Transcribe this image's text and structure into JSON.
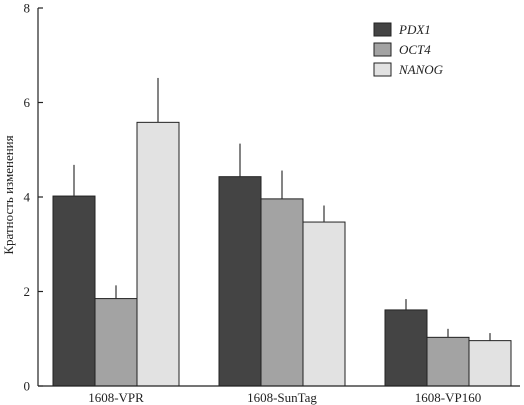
{
  "chart_data": {
    "type": "bar",
    "categories": [
      "1608-VPR",
      "1608-SunTag",
      "1608-VP160"
    ],
    "series": [
      {
        "name": "PDX1",
        "color": "#444444",
        "values": [
          4.02,
          4.43,
          1.61
        ],
        "errors": [
          0.66,
          0.7,
          0.23
        ]
      },
      {
        "name": "OCT4",
        "color": "#a3a3a3",
        "values": [
          1.85,
          3.96,
          1.03
        ],
        "errors": [
          0.28,
          0.6,
          0.18
        ]
      },
      {
        "name": "NANOG",
        "color": "#e2e2e2",
        "values": [
          5.58,
          3.47,
          0.96
        ],
        "errors": [
          0.94,
          0.35,
          0.16
        ]
      }
    ],
    "xlabel": "",
    "ylabel": "Кратность изменения",
    "ylim": [
      0,
      8
    ],
    "yticks": [
      0,
      2,
      4,
      6,
      8
    ],
    "grid": false,
    "legend_position": "top-right"
  }
}
